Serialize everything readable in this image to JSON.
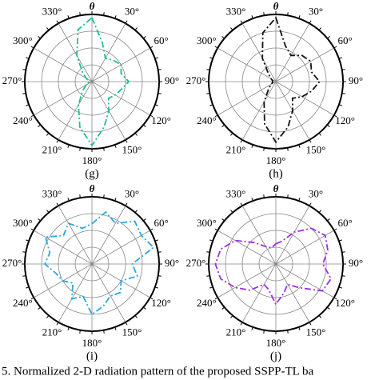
{
  "chart_data": [
    {
      "type": "polar",
      "label": "(g)",
      "axis_title": "θ",
      "color": "#1fbf8f",
      "theta": [
        0,
        15,
        30,
        45,
        60,
        75,
        90,
        105,
        120,
        135,
        150,
        165,
        180,
        195,
        210,
        225,
        240,
        255,
        270,
        285,
        300,
        315,
        330,
        345
      ],
      "values": [
        0.95,
        0.6,
        0.4,
        0.45,
        0.5,
        0.45,
        0.55,
        0.45,
        0.4,
        0.35,
        0.5,
        0.7,
        0.95,
        0.7,
        0.4,
        0.2,
        0.1,
        0.05,
        0.05,
        0.05,
        0.1,
        0.2,
        0.45,
        0.8
      ],
      "rlim": [
        0,
        1
      ],
      "rticks": [
        0.25,
        0.5,
        0.75,
        1
      ],
      "thetaticks": [
        {
          "value": 30,
          "label": "30°"
        },
        {
          "value": 60,
          "label": "60°"
        },
        {
          "value": 90,
          "label": "90°"
        },
        {
          "value": 120,
          "label": "120°"
        },
        {
          "value": 150,
          "label": "150°"
        },
        {
          "value": 180,
          "label": "180°"
        },
        {
          "value": 210,
          "label": "210°"
        },
        {
          "value": 240,
          "label": "240°"
        },
        {
          "value": 270,
          "label": "270°"
        },
        {
          "value": 300,
          "label": "300°"
        },
        {
          "value": 330,
          "label": "330°"
        }
      ]
    },
    {
      "type": "polar",
      "label": "(h)",
      "axis_title": "θ",
      "color": "#111111",
      "theta": [
        0,
        15,
        30,
        45,
        60,
        75,
        90,
        105,
        120,
        135,
        150,
        165,
        180,
        195,
        210,
        225,
        240,
        255,
        270,
        285,
        300,
        315,
        330,
        345
      ],
      "values": [
        0.95,
        0.55,
        0.45,
        0.55,
        0.6,
        0.55,
        0.65,
        0.55,
        0.45,
        0.35,
        0.5,
        0.7,
        0.9,
        0.65,
        0.35,
        0.15,
        0.08,
        0.05,
        0.05,
        0.05,
        0.08,
        0.15,
        0.4,
        0.75
      ],
      "rlim": [
        0,
        1
      ],
      "rticks": [
        0.25,
        0.5,
        0.75,
        1
      ],
      "thetaticks": [
        {
          "value": 30,
          "label": "30°"
        },
        {
          "value": 60,
          "label": "60°"
        },
        {
          "value": 90,
          "label": "90°"
        },
        {
          "value": 120,
          "label": "120°"
        },
        {
          "value": 150,
          "label": "150°"
        },
        {
          "value": 180,
          "label": "180°"
        },
        {
          "value": 210,
          "label": "210°"
        },
        {
          "value": 240,
          "label": "240°"
        },
        {
          "value": 270,
          "label": "270°"
        },
        {
          "value": 300,
          "label": "300°"
        },
        {
          "value": 330,
          "label": "330°"
        }
      ]
    },
    {
      "type": "polar",
      "label": "(i)",
      "axis_title": "θ",
      "color": "#2aa7e0",
      "theta": [
        0,
        15,
        30,
        45,
        60,
        75,
        90,
        105,
        120,
        135,
        150,
        165,
        180,
        195,
        210,
        225,
        240,
        255,
        270,
        285,
        300,
        315,
        330,
        345
      ],
      "values": [
        0.6,
        0.8,
        0.7,
        0.9,
        0.85,
        0.95,
        0.6,
        0.7,
        0.5,
        0.6,
        0.55,
        0.65,
        0.75,
        0.5,
        0.6,
        0.4,
        0.5,
        0.55,
        0.7,
        0.65,
        0.8,
        0.6,
        0.7,
        0.55
      ],
      "rlim": [
        0,
        1
      ],
      "rticks": [
        0.25,
        0.5,
        0.75,
        1
      ],
      "thetaticks": [
        {
          "value": 30,
          "label": "30°"
        },
        {
          "value": 60,
          "label": "60°"
        },
        {
          "value": 90,
          "label": "90°"
        },
        {
          "value": 120,
          "label": "120°"
        },
        {
          "value": 150,
          "label": "150°"
        },
        {
          "value": 180,
          "label": "180°"
        },
        {
          "value": 210,
          "label": "210°"
        },
        {
          "value": 240,
          "label": "240°"
        },
        {
          "value": 270,
          "label": "270°"
        },
        {
          "value": 300,
          "label": "300°"
        },
        {
          "value": 330,
          "label": "330°"
        }
      ]
    },
    {
      "type": "polar",
      "label": "(j)",
      "axis_title": "θ",
      "color": "#9b30e0",
      "theta": [
        0,
        15,
        30,
        45,
        60,
        75,
        90,
        105,
        120,
        135,
        150,
        165,
        180,
        195,
        210,
        225,
        240,
        255,
        270,
        285,
        300,
        315,
        330,
        345
      ],
      "values": [
        0.3,
        0.35,
        0.55,
        0.75,
        0.85,
        0.8,
        0.7,
        0.85,
        0.8,
        0.5,
        0.35,
        0.45,
        0.6,
        0.4,
        0.35,
        0.55,
        0.7,
        0.85,
        0.9,
        0.85,
        0.7,
        0.45,
        0.3,
        0.25
      ],
      "rlim": [
        0,
        1
      ],
      "rticks": [
        0.25,
        0.5,
        0.75,
        1
      ],
      "thetaticks": [
        {
          "value": 30,
          "label": "30°"
        },
        {
          "value": 60,
          "label": "60°"
        },
        {
          "value": 90,
          "label": "90°"
        },
        {
          "value": 120,
          "label": "120°"
        },
        {
          "value": 150,
          "label": "150°"
        },
        {
          "value": 180,
          "label": "180°"
        },
        {
          "value": 210,
          "label": "210°"
        },
        {
          "value": 240,
          "label": "240°"
        },
        {
          "value": 270,
          "label": "270°"
        },
        {
          "value": 300,
          "label": "300°"
        },
        {
          "value": 330,
          "label": "330°"
        }
      ]
    }
  ],
  "caption": "5. Normalized 2-D radiation pattern of the proposed SSPP-TL ba"
}
